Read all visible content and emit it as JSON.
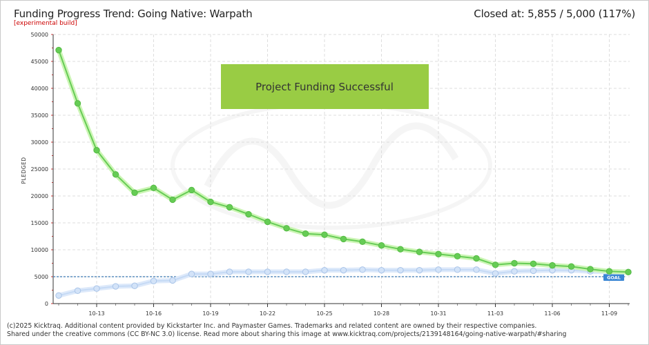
{
  "header": {
    "title": "Funding Progress Trend: Going Native: Warpath",
    "subtitle": "[experimental build]",
    "closed_label": "Closed at:",
    "closed_value": "5,855 / 5,000 (117%)"
  },
  "footer": {
    "line1": "(c)2025 Kicktraq. Additional content provided by Kickstarter Inc. and Paymaster Games. Trademarks and related content are owned by their respective companies.",
    "line2": "Shared under the creative commons (CC BY-NC 3.0) license. Read more about sharing this image at www.kicktraq.com/projects/2139148164/going-native-warpath/#sharing"
  },
  "colors": {
    "trend": "#66cc55",
    "trend_glow": "#ccf5b5",
    "pledged": "#c5daf5",
    "pledged_glow": "#dde9fa",
    "goal": "#5b8fbf",
    "banner": "#99cc44"
  },
  "chart_data": {
    "type": "line",
    "title": "Funding Progress Trend: Going Native: Warpath",
    "ylabel": "PLEDGED",
    "ylim": [
      0,
      50000
    ],
    "y_ticks": [
      0,
      5000,
      10000,
      15000,
      20000,
      25000,
      30000,
      35000,
      40000,
      45000,
      50000
    ],
    "x_tick_labels": [
      "10-13",
      "10-16",
      "10-19",
      "10-22",
      "10-25",
      "10-28",
      "10-31",
      "11-03",
      "11-06",
      "11-09"
    ],
    "x": [
      "10-11",
      "10-12",
      "10-13",
      "10-14",
      "10-15",
      "10-16",
      "10-17",
      "10-18",
      "10-19",
      "10-20",
      "10-21",
      "10-22",
      "10-23",
      "10-24",
      "10-25",
      "10-26",
      "10-27",
      "10-28",
      "10-29",
      "10-30",
      "10-31",
      "11-01",
      "11-02",
      "11-03",
      "11-04",
      "11-05",
      "11-06",
      "11-07",
      "11-08",
      "11-09",
      "11-10"
    ],
    "goal": 5000,
    "goal_label": "GOAL",
    "banner": "Project Funding Successful",
    "series": [
      {
        "key": "trend",
        "values": [
          47100,
          37200,
          28500,
          24000,
          20600,
          21500,
          19300,
          21100,
          18900,
          17900,
          16600,
          15200,
          14000,
          13000,
          12800,
          12000,
          11500,
          10800,
          10100,
          9600,
          9200,
          8800,
          8400,
          7200,
          7500,
          7400,
          7100,
          6900,
          6400,
          6000,
          5855
        ]
      },
      {
        "key": "pledged",
        "values": [
          1500,
          2400,
          2800,
          3200,
          3300,
          4200,
          4300,
          5500,
          5500,
          5900,
          5900,
          5900,
          5900,
          5900,
          6200,
          6200,
          6300,
          6200,
          6200,
          6200,
          6300,
          6300,
          6300,
          5600,
          6000,
          6100,
          6200,
          6200,
          6000,
          5900,
          5855
        ]
      }
    ]
  }
}
